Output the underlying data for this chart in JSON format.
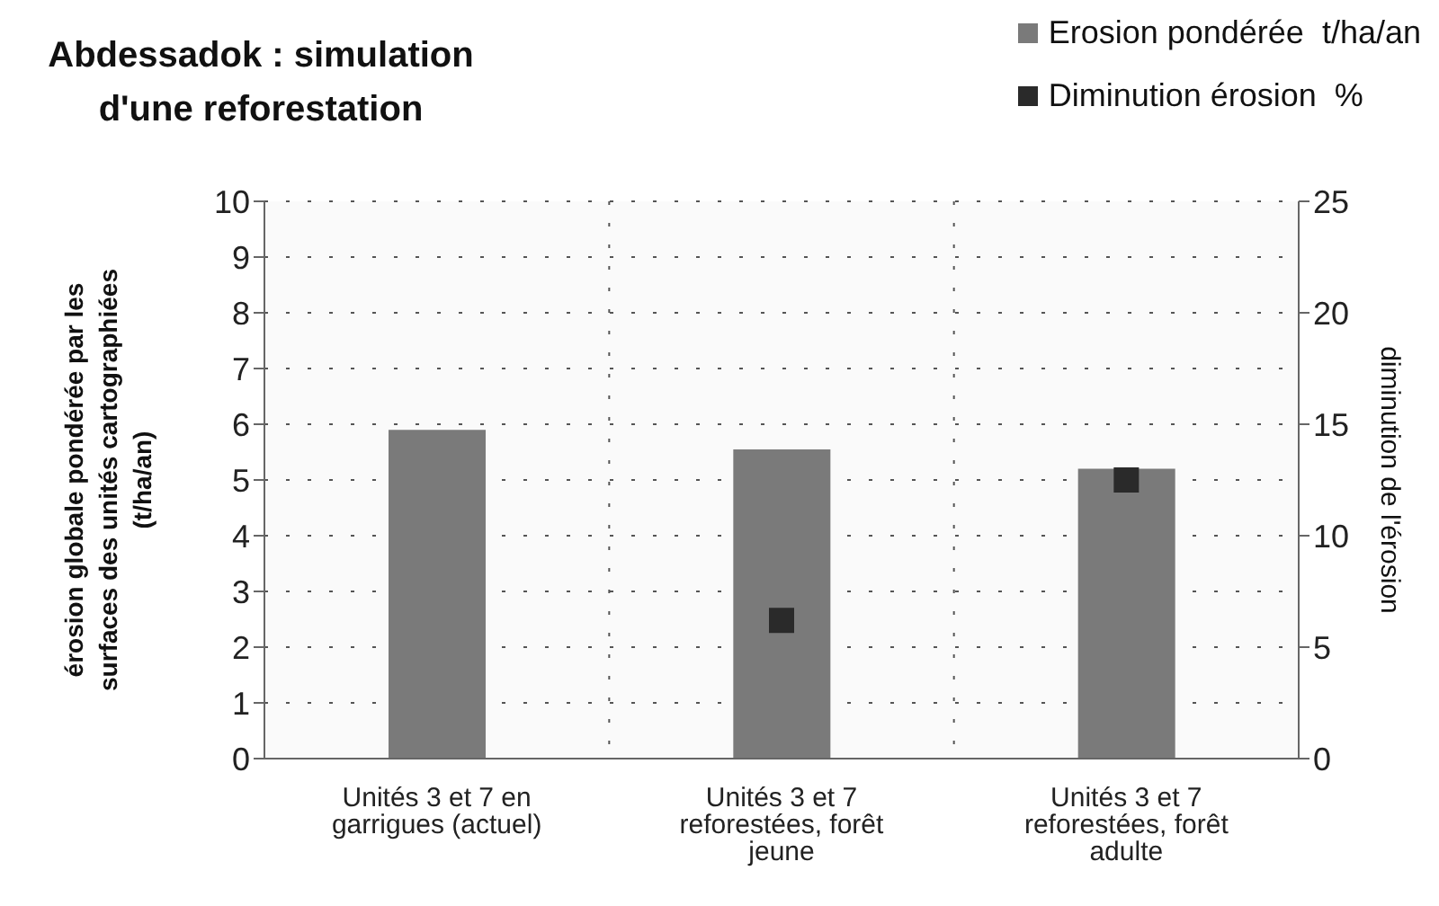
{
  "chart_data": {
    "type": "bar",
    "title": "Abdessadok : simulation d'une reforestation",
    "categories": [
      "Unités 3 et 7 en garrigues (actuel)",
      "Unités 3 et 7 reforestées, forêt jeune",
      "Unités 3 et 7 reforestées, forêt adulte"
    ],
    "series": [
      {
        "name": "Erosion pondérée  t/ha/an",
        "color": "#7a7a7a",
        "values": [
          5.9,
          5.55,
          5.2
        ]
      },
      {
        "name": "Diminution érosion  %",
        "type": "scatter",
        "axis": "y2",
        "color": "#2a2a2a",
        "values": [
          null,
          6.2,
          12.5
        ]
      }
    ],
    "ylabel": "érosion globale pondérée par les surfaces des unités cartographiées (t/ha/an)",
    "y2label": "diminution de l'érosion",
    "ylim": [
      0,
      10
    ],
    "yticks": [
      0,
      1,
      2,
      3,
      4,
      5,
      6,
      7,
      8,
      9,
      10
    ],
    "y2lim": [
      0,
      25
    ],
    "y2ticks": [
      0,
      5,
      10,
      15,
      20,
      25
    ],
    "grid": true,
    "legend": "top right",
    "marker": "square"
  }
}
